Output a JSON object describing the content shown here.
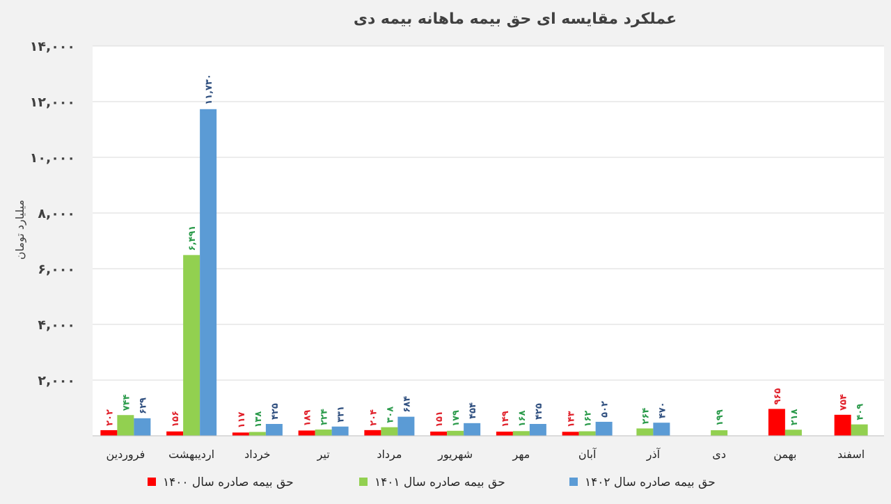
{
  "chart_data": {
    "type": "bar",
    "title": "عملکرد مقایسه ای حق بیمه ماهانه بیمه دی",
    "ylabel": "میلیارد تومان",
    "xlabel": "",
    "ylim": [
      0,
      14000
    ],
    "yticks": [
      0,
      2000,
      4000,
      6000,
      8000,
      10000,
      12000,
      14000
    ],
    "ytick_labels": [
      "",
      "۲,۰۰۰",
      "۴,۰۰۰",
      "۶,۰۰۰",
      "۸,۰۰۰",
      "۱۰,۰۰۰",
      "۱۲,۰۰۰",
      "۱۴,۰۰۰"
    ],
    "grid": true,
    "legend_position": "bottom",
    "categories": [
      "فروردین",
      "اردیبهشت",
      "خرداد",
      "تیر",
      "مرداد",
      "شهریور",
      "مهر",
      "آبان",
      "آذر",
      "دی",
      "بهمن",
      "اسفند"
    ],
    "series": [
      {
        "name": "حق بیمه صادره سال ۱۴۰۰",
        "color": "#ff0000",
        "label_color": "#e0202a",
        "values": [
          202,
          156,
          117,
          189,
          204,
          151,
          149,
          143,
          null,
          null,
          965,
          754
        ],
        "labels": [
          "۲۰۲",
          "۱۵۶",
          "۱۱۷",
          "۱۸۹",
          "۲۰۴",
          "۱۵۱",
          "۱۴۹",
          "۱۴۳",
          "",
          "",
          "۹۶۵",
          "۷۵۴"
        ]
      },
      {
        "name": "حق بیمه صادره سال ۱۴۰۱",
        "color": "#92d050",
        "label_color": "#2a9a4a",
        "values": [
          744,
          6491,
          138,
          224,
          308,
          179,
          168,
          162,
          264,
          199,
          218,
          409
        ],
        "labels": [
          "۷۴۴",
          "۶,۴۹۱",
          "۱۳۸",
          "۲۲۴",
          "۳۰۸",
          "۱۷۹",
          "۱۶۸",
          "۱۶۲",
          "۲۶۴",
          "۱۹۹",
          "۲۱۸",
          "۴۰۹"
        ]
      },
      {
        "name": "حق بیمه صادره سال ۱۴۰۲",
        "color": "#5b9bd5",
        "label_color": "#2f4f7f",
        "values": [
          629,
          11730,
          425,
          331,
          684,
          454,
          425,
          502,
          470,
          null,
          null,
          null
        ],
        "labels": [
          "۶۲۹",
          "۱۱,۷۳۰",
          "۴۲۵",
          "۳۳۱",
          "۶۸۴",
          "۴۵۴",
          "۴۲۵",
          "۵۰۲",
          "۴۷۰",
          "",
          "",
          ""
        ]
      }
    ]
  }
}
